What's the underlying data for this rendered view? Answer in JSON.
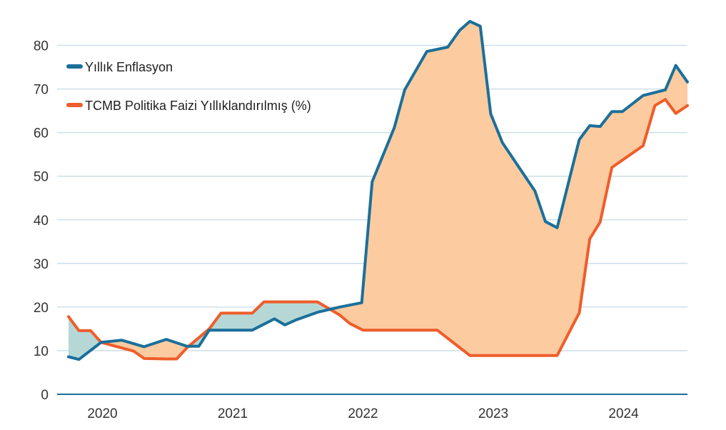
{
  "colors": {
    "inflation": "#1b6f9a",
    "policy_rate": "#ee5d2b",
    "fill_inflation_above": "#fccba0",
    "fill_rate_above": "#b5d8d6",
    "grid": "#c7dbe6",
    "axis": "#1b6f9a"
  },
  "chart_data": {
    "type": "line",
    "title": "",
    "xlabel": "",
    "ylabel": "",
    "xlim": [
      2019.74,
      2024.49
    ],
    "ylim": [
      0,
      85
    ],
    "yticks": [
      0,
      10,
      20,
      30,
      40,
      50,
      60,
      70,
      80
    ],
    "xticks": [
      {
        "value": 2020,
        "label": "2020"
      },
      {
        "value": 2021,
        "label": "2021"
      },
      {
        "value": 2022,
        "label": "2022"
      },
      {
        "value": 2023,
        "label": "2023"
      },
      {
        "value": 2024,
        "label": "2024"
      }
    ],
    "legend": {
      "position": "top-left"
    },
    "series": [
      {
        "name": "Yıllık Enflasyon",
        "color_key": "inflation",
        "points": [
          [
            2019.74,
            8.6
          ],
          [
            2019.82,
            8.0
          ],
          [
            2019.99,
            11.9
          ],
          [
            2020.15,
            12.4
          ],
          [
            2020.32,
            10.9
          ],
          [
            2020.49,
            12.6
          ],
          [
            2020.65,
            11.0
          ],
          [
            2020.74,
            11.0
          ],
          [
            2020.82,
            14.7
          ],
          [
            2020.99,
            14.7
          ],
          [
            2021.07,
            14.7
          ],
          [
            2021.15,
            14.7
          ],
          [
            2021.32,
            17.3
          ],
          [
            2021.4,
            15.9
          ],
          [
            2021.49,
            17.1
          ],
          [
            2021.65,
            18.8
          ],
          [
            2021.82,
            20.0
          ],
          [
            2021.99,
            21.0
          ],
          [
            2022.07,
            48.7
          ],
          [
            2022.24,
            61.1
          ],
          [
            2022.32,
            69.8
          ],
          [
            2022.49,
            78.6
          ],
          [
            2022.65,
            79.6
          ],
          [
            2022.74,
            83.4
          ],
          [
            2022.82,
            85.5
          ],
          [
            2022.9,
            84.4
          ],
          [
            2022.98,
            64.3
          ],
          [
            2023.07,
            57.7
          ],
          [
            2023.32,
            46.6
          ],
          [
            2023.4,
            39.6
          ],
          [
            2023.49,
            38.2
          ],
          [
            2023.66,
            58.4
          ],
          [
            2023.74,
            61.6
          ],
          [
            2023.82,
            61.4
          ],
          [
            2023.91,
            64.8
          ],
          [
            2023.99,
            64.8
          ],
          [
            2024.15,
            68.5
          ],
          [
            2024.32,
            69.8
          ],
          [
            2024.4,
            75.4
          ],
          [
            2024.49,
            71.6
          ]
        ]
      },
      {
        "name": "TCMB Politika Faizi Yıllıklandırılmış (%)",
        "color_key": "policy_rate",
        "points": [
          [
            2019.74,
            17.8
          ],
          [
            2019.82,
            14.6
          ],
          [
            2019.91,
            14.6
          ],
          [
            2019.99,
            11.9
          ],
          [
            2020.24,
            9.9
          ],
          [
            2020.32,
            8.2
          ],
          [
            2020.49,
            8.1
          ],
          [
            2020.57,
            8.1
          ],
          [
            2020.65,
            10.7
          ],
          [
            2020.82,
            15.0
          ],
          [
            2020.91,
            18.6
          ],
          [
            2021.07,
            18.6
          ],
          [
            2021.15,
            18.6
          ],
          [
            2021.24,
            21.2
          ],
          [
            2021.4,
            21.2
          ],
          [
            2021.57,
            21.2
          ],
          [
            2021.65,
            21.2
          ],
          [
            2021.82,
            18.2
          ],
          [
            2021.9,
            16.2
          ],
          [
            2022.0,
            14.7
          ],
          [
            2022.49,
            14.7
          ],
          [
            2022.57,
            14.7
          ],
          [
            2022.82,
            8.9
          ],
          [
            2022.99,
            8.9
          ],
          [
            2023.32,
            8.9
          ],
          [
            2023.49,
            8.9
          ],
          [
            2023.66,
            18.7
          ],
          [
            2023.74,
            35.6
          ],
          [
            2023.82,
            39.5
          ],
          [
            2023.91,
            52.0
          ],
          [
            2024.15,
            57.0
          ],
          [
            2024.24,
            66.2
          ],
          [
            2024.32,
            67.6
          ],
          [
            2024.4,
            64.4
          ],
          [
            2024.49,
            66.2
          ]
        ]
      }
    ]
  }
}
